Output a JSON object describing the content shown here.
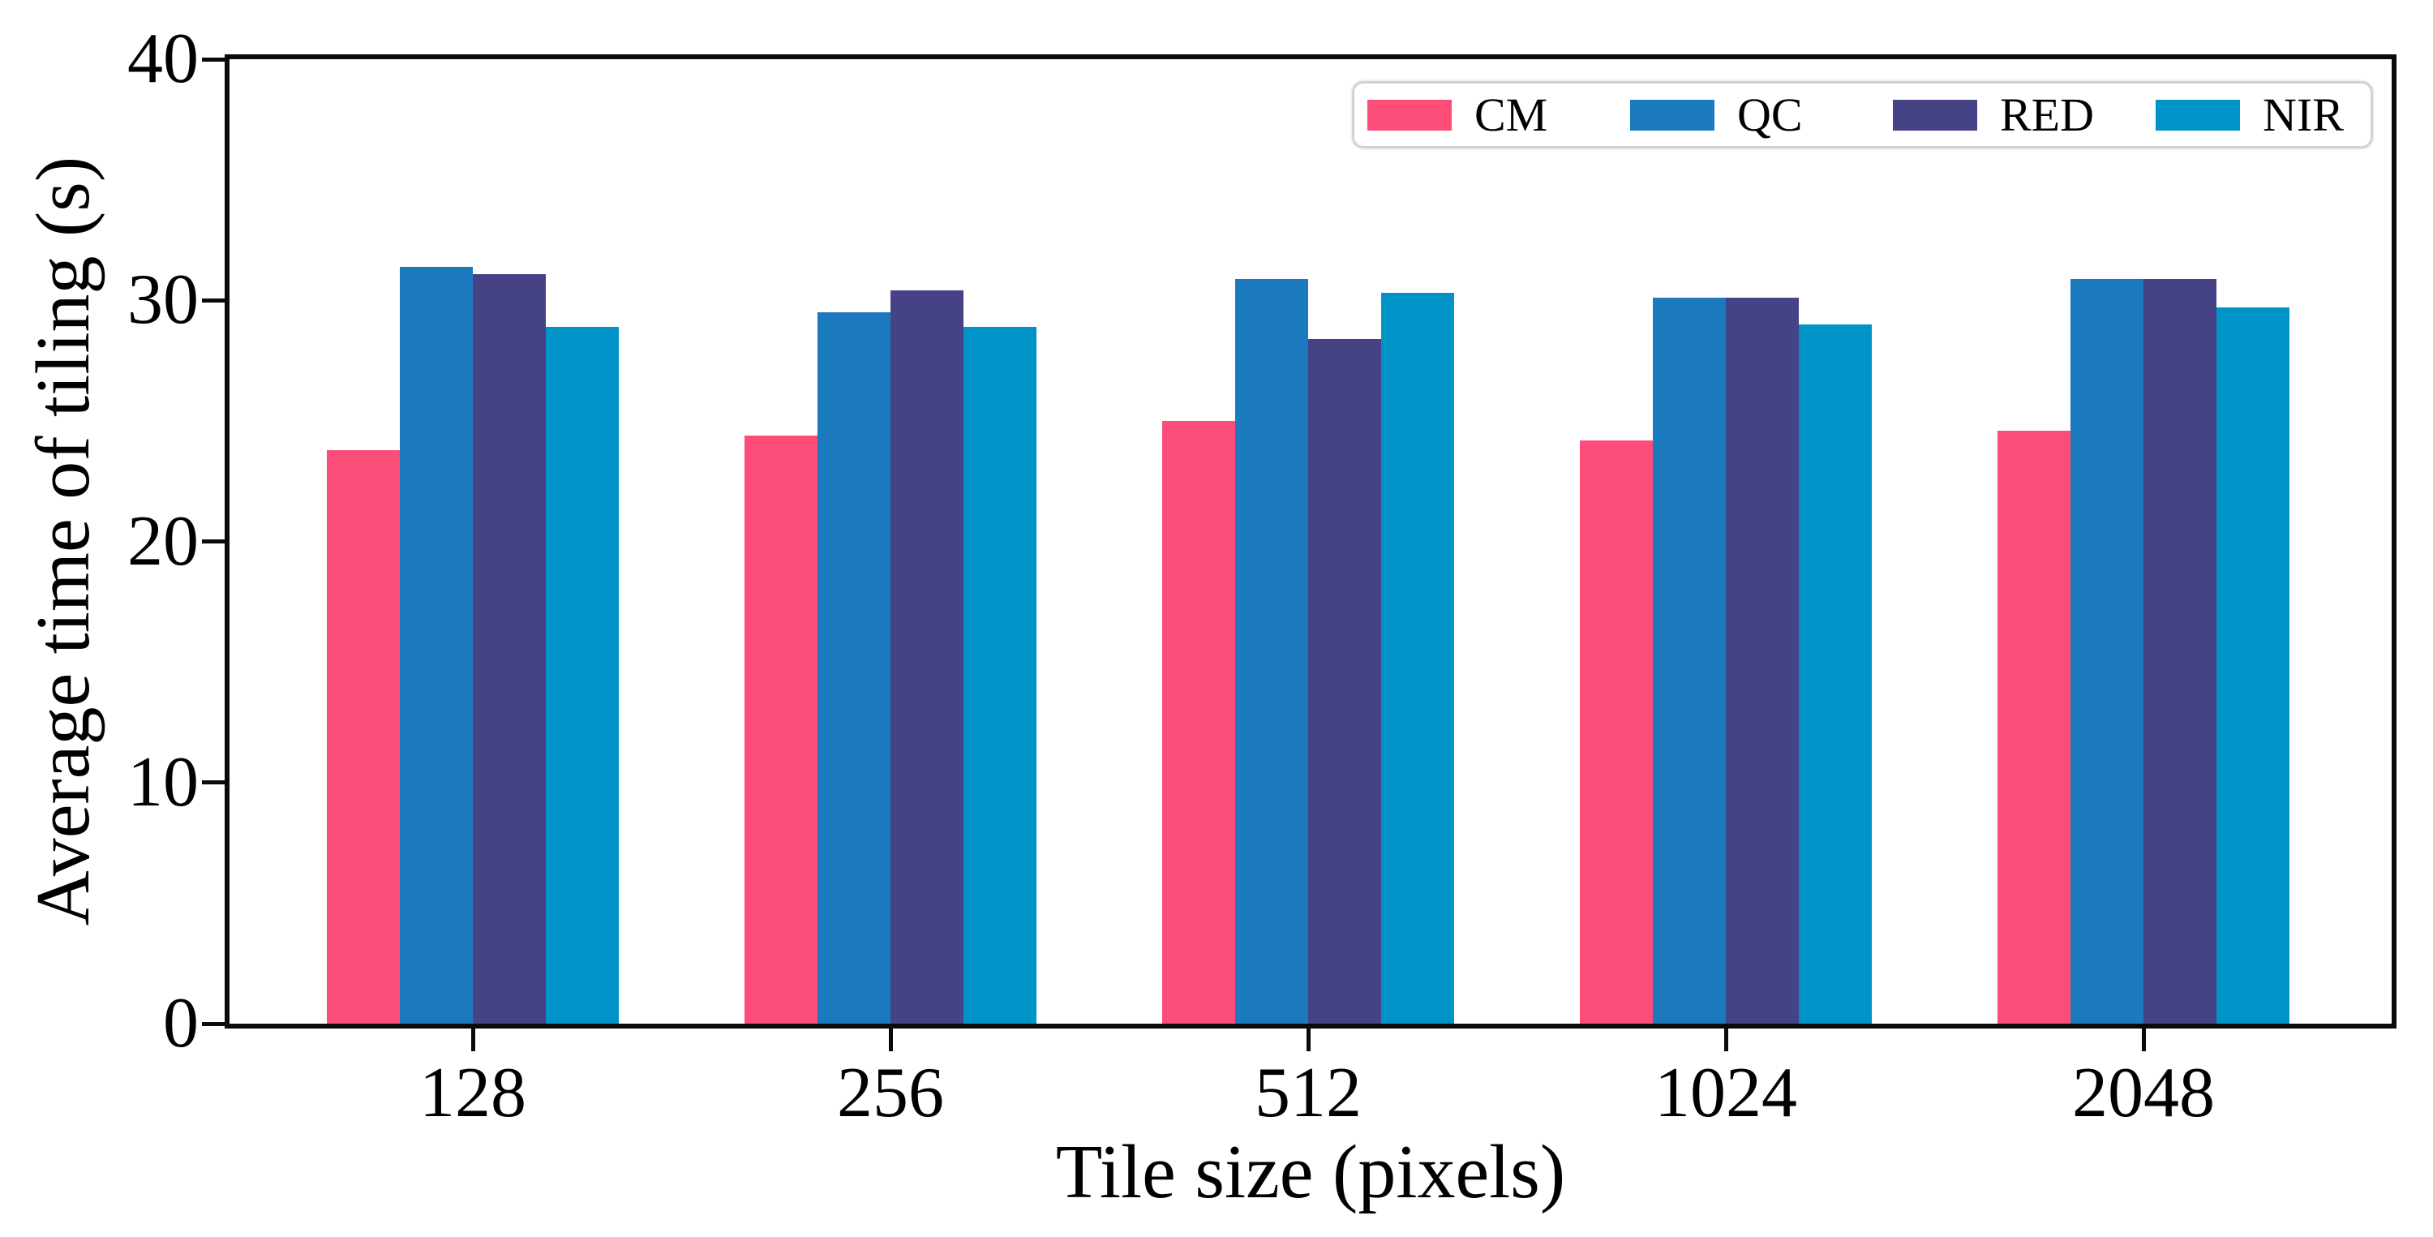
{
  "figure": {
    "background": "#ffffff",
    "axis_color": "#0a0a0a"
  },
  "chart_data": {
    "type": "bar",
    "title": "",
    "xlabel": "Tile size (pixels)",
    "ylabel": "Average time of tiling (s)",
    "categories": [
      "128",
      "256",
      "512",
      "1024",
      "2048"
    ],
    "series": [
      {
        "name": "CM",
        "color": "#FC4D79",
        "values": [
          23.8,
          24.4,
          25.0,
          24.2,
          24.6
        ]
      },
      {
        "name": "QC",
        "color": "#1B79BD",
        "values": [
          31.4,
          29.5,
          30.9,
          30.1,
          30.9
        ]
      },
      {
        "name": "RED",
        "color": "#454285",
        "values": [
          31.1,
          30.4,
          28.4,
          30.1,
          30.9
        ]
      },
      {
        "name": "NIR",
        "color": "#0093C8",
        "values": [
          28.9,
          28.9,
          30.3,
          29.0,
          29.7
        ]
      }
    ],
    "ylim": [
      0,
      40
    ],
    "yticks": [
      0,
      10,
      20,
      30,
      40
    ],
    "ytick_labels": [
      "0",
      "10",
      "20",
      "30",
      "40"
    ],
    "grid": false,
    "legend_position": "upper right",
    "legend_entries": [
      "CM",
      "QC",
      "RED",
      "NIR"
    ]
  }
}
